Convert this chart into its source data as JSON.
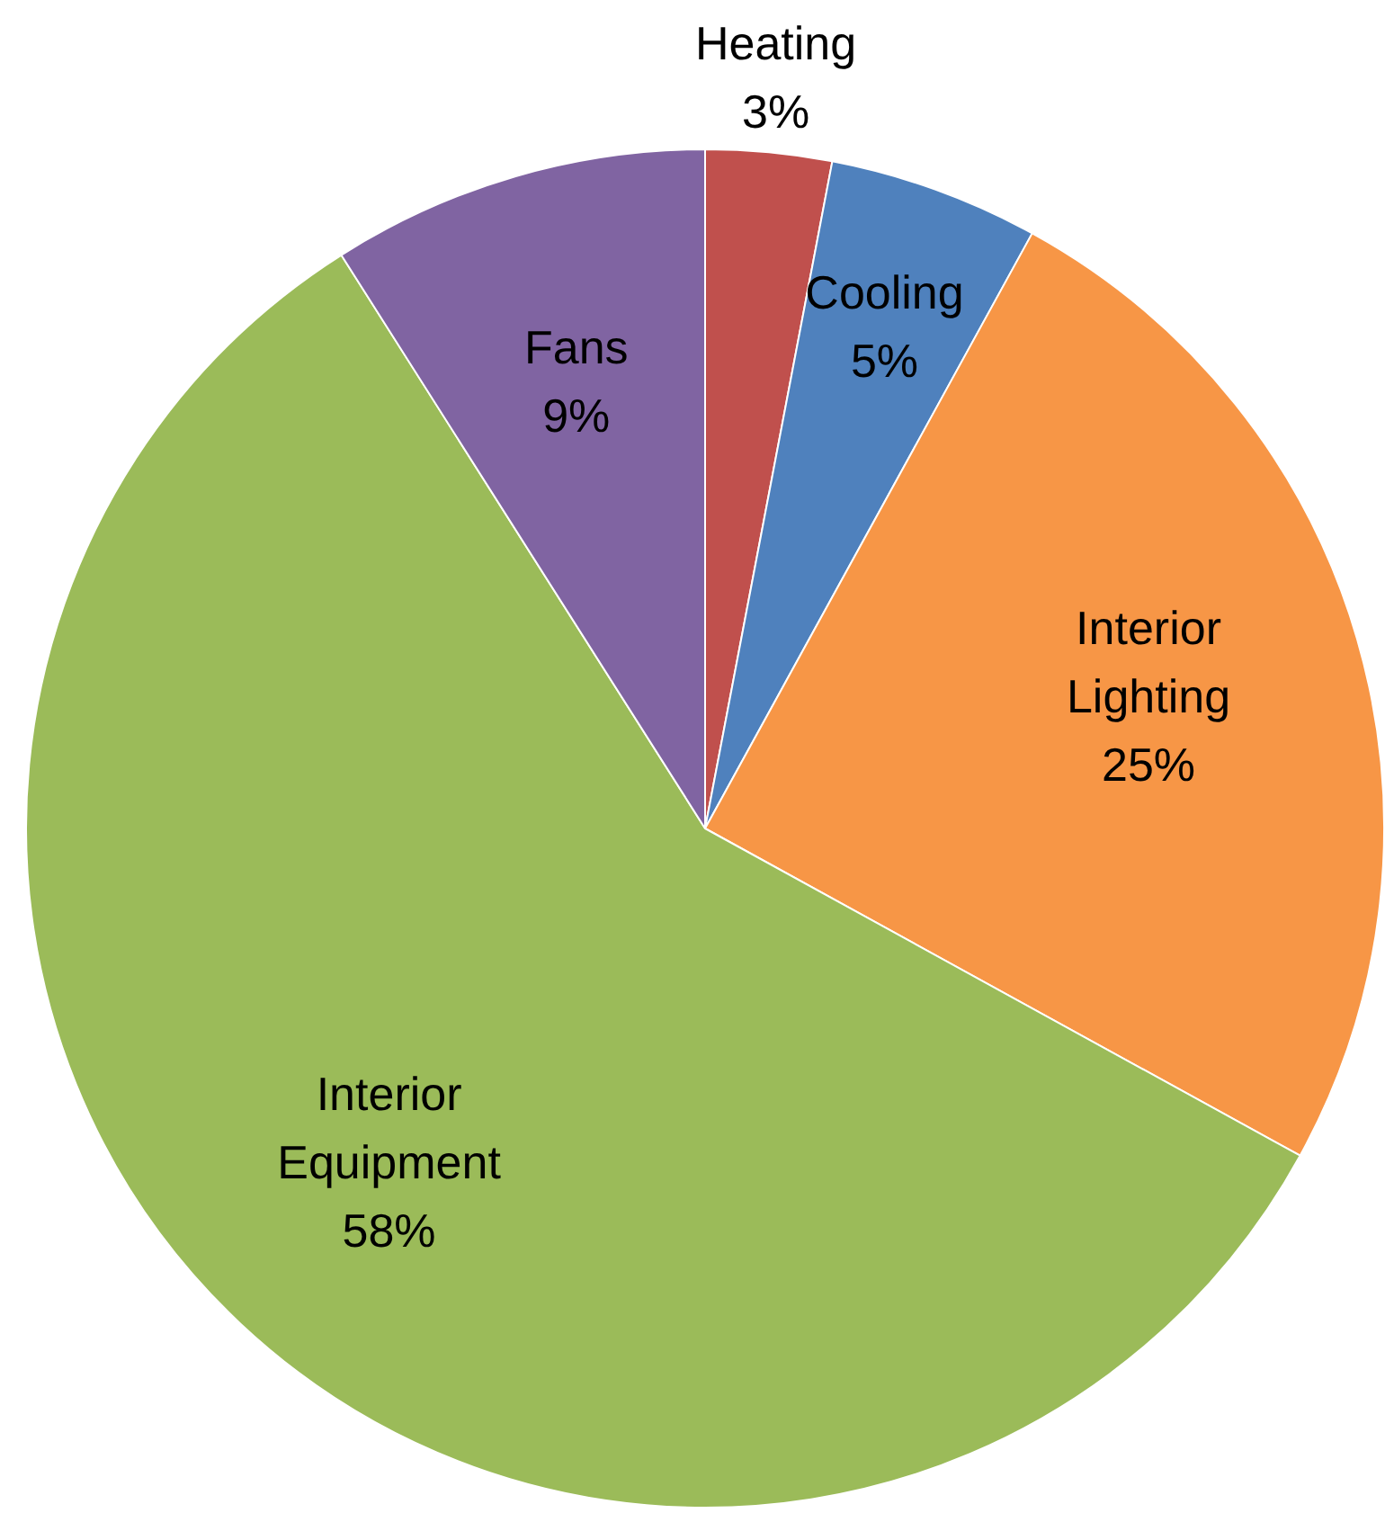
{
  "chart_data": {
    "type": "pie",
    "categories": [
      "Heating",
      "Cooling",
      "Interior Lighting",
      "Interior Equipment",
      "Fans"
    ],
    "values": [
      3,
      5,
      25,
      58,
      9
    ],
    "value_labels": [
      "3%",
      "5%",
      "25%",
      "58%",
      "9%"
    ],
    "colors": [
      "#c0504d",
      "#4f81bd",
      "#f79646",
      "#9bbb59",
      "#8064a2"
    ],
    "legend": false
  }
}
